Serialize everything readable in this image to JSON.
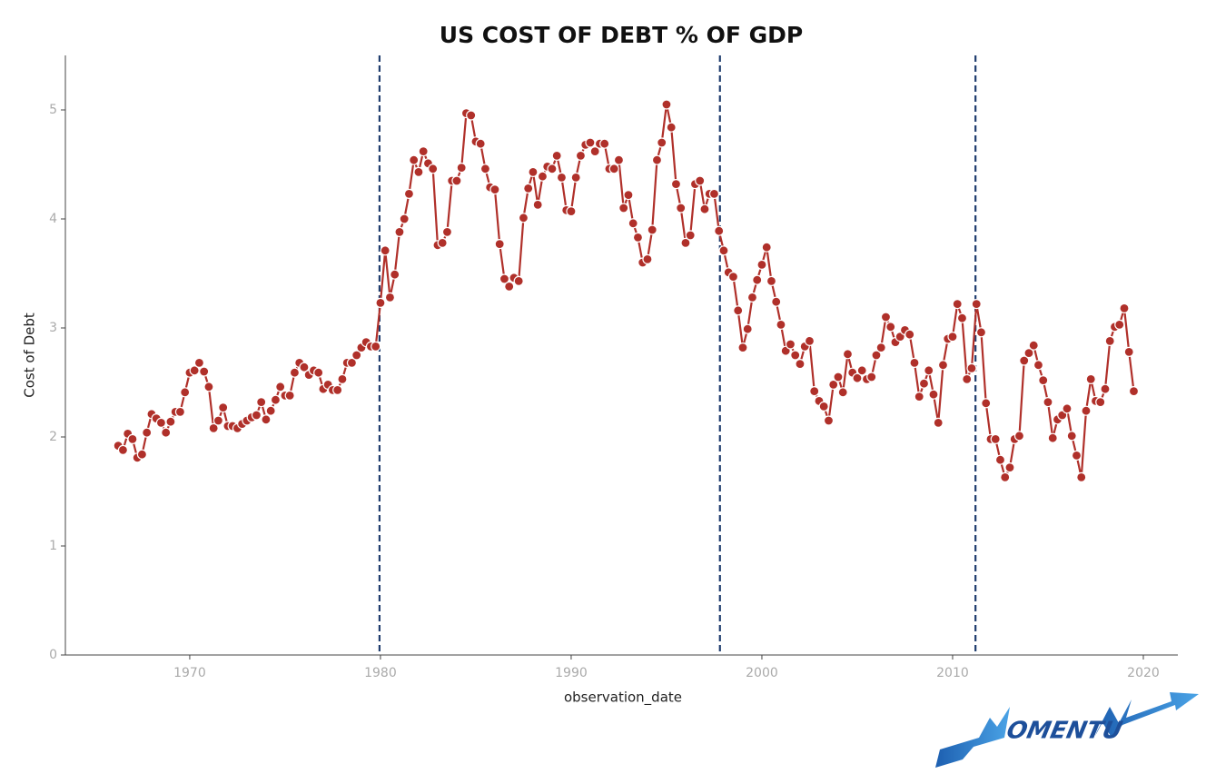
{
  "chart_data": {
    "type": "line",
    "title": "US COST OF DEBT % OF GDP",
    "xlabel": "observation_date",
    "ylabel": "Cost of Debt",
    "color": "#b0302a",
    "xlim": [
      1963.48,
      2021.81
    ],
    "ylim": [
      0,
      5.5
    ],
    "xticks": [
      1970,
      1980,
      1990,
      2000,
      2010,
      2020
    ],
    "yticks": [
      0,
      1,
      2,
      3,
      4,
      5
    ],
    "vlines": [
      1979.95,
      1997.8,
      2011.2
    ],
    "vline_color": "#1f3d6e",
    "x": [
      1966.25,
      1966.5,
      1966.75,
      1967,
      1967.25,
      1967.5,
      1967.75,
      1968,
      1968.25,
      1968.5,
      1968.75,
      1969,
      1969.25,
      1969.5,
      1969.75,
      1970,
      1970.25,
      1970.5,
      1970.75,
      1971,
      1971.25,
      1971.5,
      1971.75,
      1972,
      1972.25,
      1972.5,
      1972.75,
      1973,
      1973.25,
      1973.5,
      1973.75,
      1974,
      1974.25,
      1974.5,
      1974.75,
      1975,
      1975.25,
      1975.5,
      1975.75,
      1976,
      1976.25,
      1976.5,
      1976.75,
      1977,
      1977.25,
      1977.5,
      1977.75,
      1978,
      1978.25,
      1978.5,
      1978.75,
      1979,
      1979.25,
      1979.5,
      1979.75,
      1980,
      1980.25,
      1980.5,
      1980.75,
      1981,
      1981.25,
      1981.5,
      1981.75,
      1982,
      1982.25,
      1982.5,
      1982.75,
      1983,
      1983.25,
      1983.5,
      1983.75,
      1984,
      1984.25,
      1984.5,
      1984.75,
      1985,
      1985.25,
      1985.5,
      1985.75,
      1986,
      1986.25,
      1986.5,
      1986.75,
      1987,
      1987.25,
      1987.5,
      1987.75,
      1988,
      1988.25,
      1988.5,
      1988.75,
      1989,
      1989.25,
      1989.5,
      1989.75,
      1990,
      1990.25,
      1990.5,
      1990.75,
      1991,
      1991.25,
      1991.5,
      1991.75,
      1992,
      1992.25,
      1992.5,
      1992.75,
      1993,
      1993.25,
      1993.5,
      1993.75,
      1994,
      1994.25,
      1994.5,
      1994.75,
      1995,
      1995.25,
      1995.5,
      1995.75,
      1996,
      1996.25,
      1996.5,
      1996.75,
      1997,
      1997.25,
      1997.5,
      1997.75,
      1998,
      1998.25,
      1998.5,
      1998.75,
      1999,
      1999.25,
      1999.5,
      1999.75,
      2000,
      2000.25,
      2000.5,
      2000.75,
      2001,
      2001.25,
      2001.5,
      2001.75,
      2002,
      2002.25,
      2002.5,
      2002.75,
      2003,
      2003.25,
      2003.5,
      2003.75,
      2004,
      2004.25,
      2004.5,
      2004.75,
      2005,
      2005.25,
      2005.5,
      2005.75,
      2006,
      2006.25,
      2006.5,
      2006.75,
      2007,
      2007.25,
      2007.5,
      2007.75,
      2008,
      2008.25,
      2008.5,
      2008.75,
      2009,
      2009.25,
      2009.5,
      2009.75,
      2010,
      2010.25,
      2010.5,
      2010.75,
      2011,
      2011.25,
      2011.5,
      2011.75,
      2012,
      2012.25,
      2012.5,
      2012.75,
      2013,
      2013.25,
      2013.5,
      2013.75,
      2014,
      2014.25,
      2014.5,
      2014.75,
      2015,
      2015.25,
      2015.5,
      2015.75,
      2016,
      2016.25,
      2016.5,
      2016.75,
      2017,
      2017.25,
      2017.5,
      2017.75,
      2018,
      2018.25,
      2018.5,
      2018.75,
      2019,
      2019.25,
      2019.5
    ],
    "values": [
      1.92,
      1.88,
      2.03,
      1.98,
      1.81,
      1.84,
      2.04,
      2.21,
      2.17,
      2.13,
      2.04,
      2.14,
      2.23,
      2.23,
      2.41,
      2.59,
      2.61,
      2.68,
      2.6,
      2.46,
      2.08,
      2.15,
      2.27,
      2.1,
      2.1,
      2.08,
      2.12,
      2.15,
      2.18,
      2.2,
      2.32,
      2.16,
      2.24,
      2.34,
      2.46,
      2.38,
      2.38,
      2.59,
      2.68,
      2.64,
      2.57,
      2.61,
      2.59,
      2.44,
      2.48,
      2.43,
      2.43,
      2.53,
      2.68,
      2.68,
      2.75,
      2.82,
      2.87,
      2.83,
      2.83,
      3.23,
      3.71,
      3.28,
      3.49,
      3.88,
      4.0,
      4.23,
      4.54,
      4.43,
      4.62,
      4.51,
      4.46,
      3.76,
      3.78,
      3.88,
      4.35,
      4.35,
      4.47,
      4.97,
      4.95,
      4.71,
      4.69,
      4.46,
      4.29,
      4.27,
      3.77,
      3.45,
      3.38,
      3.46,
      3.43,
      4.01,
      4.28,
      4.43,
      4.13,
      4.39,
      4.48,
      4.46,
      4.58,
      4.38,
      4.08,
      4.07,
      4.38,
      4.58,
      4.68,
      4.7,
      4.62,
      4.69,
      4.69,
      4.46,
      4.46,
      4.54,
      4.1,
      4.22,
      3.96,
      3.83,
      3.6,
      3.63,
      3.9,
      4.54,
      4.7,
      5.05,
      4.84,
      4.32,
      4.1,
      3.78,
      3.85,
      4.32,
      4.35,
      4.09,
      4.23,
      4.23,
      3.89,
      3.71,
      3.51,
      3.47,
      3.16,
      2.82,
      2.99,
      3.28,
      3.44,
      3.58,
      3.74,
      3.43,
      3.24,
      3.03,
      2.79,
      2.85,
      2.75,
      2.67,
      2.83,
      2.88,
      2.42,
      2.33,
      2.28,
      2.15,
      2.48,
      2.55,
      2.41,
      2.76,
      2.59,
      2.54,
      2.61,
      2.53,
      2.55,
      2.75,
      2.82,
      3.1,
      3.01,
      2.87,
      2.92,
      2.98,
      2.94,
      2.68,
      2.37,
      2.49,
      2.61,
      2.39,
      2.13,
      2.66,
      2.9,
      2.92,
      3.22,
      3.09,
      2.53,
      2.63,
      3.22,
      2.96,
      2.31,
      1.98,
      1.98,
      1.79,
      1.63,
      1.72,
      1.98,
      2.01,
      2.7,
      2.77,
      2.84,
      2.66,
      2.52,
      2.32,
      1.99,
      2.16,
      2.2,
      2.26,
      2.01,
      1.83,
      1.63,
      2.24,
      2.53,
      2.33,
      2.32,
      2.44,
      2.88,
      3.01,
      3.03,
      3.18,
      2.78,
      2.42
    ]
  },
  "logo": {
    "text": "OMENTU"
  }
}
